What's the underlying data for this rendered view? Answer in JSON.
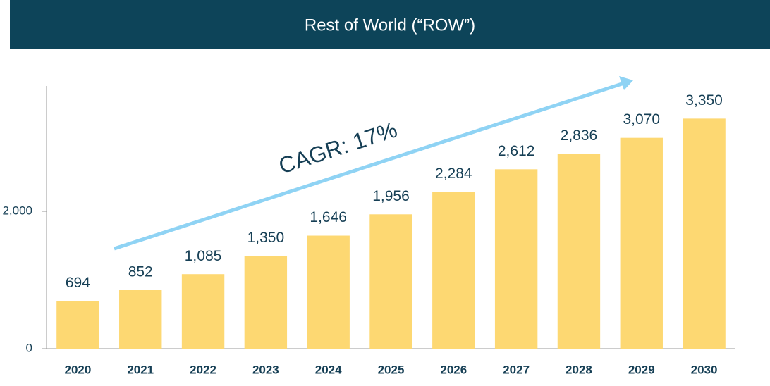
{
  "chart_data": {
    "type": "bar",
    "title": "Rest of World (“ROW”)",
    "categories": [
      "2020",
      "2021",
      "2022",
      "2023",
      "2024",
      "2025",
      "2026",
      "2027",
      "2028",
      "2029",
      "2030"
    ],
    "values": [
      694,
      852,
      1085,
      1350,
      1646,
      1956,
      2284,
      2612,
      2836,
      3070,
      3350
    ],
    "value_labels": [
      "694",
      "852",
      "1,085",
      "1,350",
      "1,646",
      "1,956",
      "2,284",
      "2,612",
      "2,836",
      "3,070",
      "3,350"
    ],
    "color": "#fdd872",
    "ylim": [
      0,
      3800
    ],
    "yticks": [
      0,
      {
        "value": 2000,
        "label": "2,000"
      }
    ],
    "grid": false,
    "annotation": "CAGR: 17%"
  }
}
